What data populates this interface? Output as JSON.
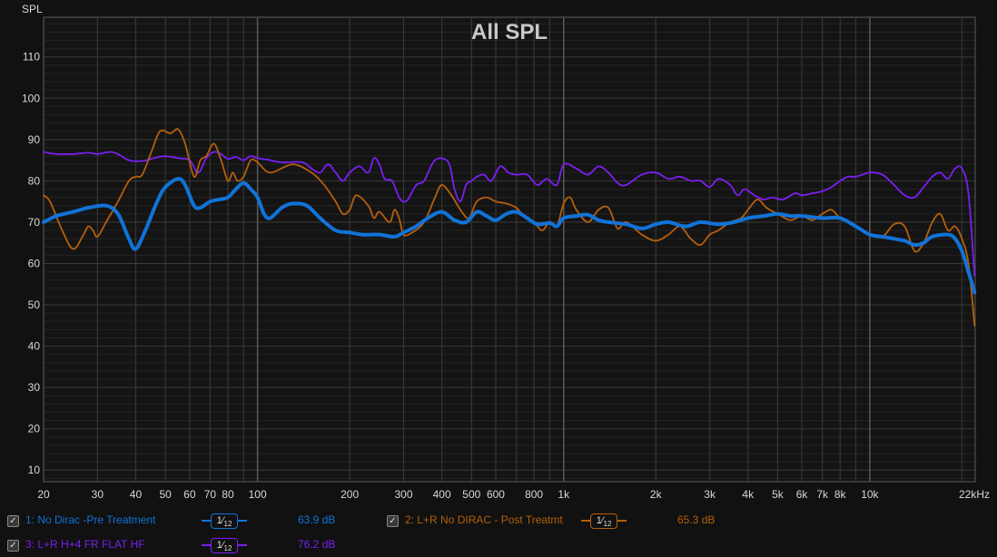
{
  "chart_data": {
    "type": "line",
    "title": "All SPL",
    "ylabel": "SPL",
    "xlabel": "",
    "xscale": "log",
    "xlim": [
      20,
      22100
    ],
    "ylim": [
      7.2,
      119.6
    ],
    "grid": true,
    "yticks": [
      10,
      20,
      30,
      40,
      50,
      60,
      70,
      80,
      90,
      100,
      110
    ],
    "xticks": [
      {
        "v": 20,
        "label": "20"
      },
      {
        "v": 30,
        "label": "30"
      },
      {
        "v": 40,
        "label": "40"
      },
      {
        "v": 50,
        "label": "50"
      },
      {
        "v": 60,
        "label": "60"
      },
      {
        "v": 70,
        "label": "70"
      },
      {
        "v": 80,
        "label": "80"
      },
      {
        "v": 100,
        "label": "100"
      },
      {
        "v": 200,
        "label": "200"
      },
      {
        "v": 300,
        "label": "300"
      },
      {
        "v": 400,
        "label": "400"
      },
      {
        "v": 500,
        "label": "500"
      },
      {
        "v": 600,
        "label": "600"
      },
      {
        "v": 800,
        "label": "800"
      },
      {
        "v": 1000,
        "label": "1k"
      },
      {
        "v": 2000,
        "label": "2k"
      },
      {
        "v": 3000,
        "label": "3k"
      },
      {
        "v": 4000,
        "label": "4k"
      },
      {
        "v": 5000,
        "label": "5k"
      },
      {
        "v": 6000,
        "label": "6k"
      },
      {
        "v": 7000,
        "label": "7k"
      },
      {
        "v": 8000,
        "label": "8k"
      },
      {
        "v": 10000,
        "label": "10k"
      },
      {
        "v": 22000,
        "label": "22kHz"
      }
    ],
    "legend_position": "bottom",
    "series": [
      {
        "name": "1: No Dirac -Pre Treatment",
        "color": "#1173d8",
        "width": 4,
        "smoothing": "1/12",
        "level": "63.9 dB",
        "points": [
          [
            20,
            70
          ],
          [
            22,
            71.5
          ],
          [
            25,
            72.5
          ],
          [
            28,
            73.5
          ],
          [
            32,
            74
          ],
          [
            35,
            72
          ],
          [
            38,
            66
          ],
          [
            40,
            63.5
          ],
          [
            43,
            68
          ],
          [
            47,
            75
          ],
          [
            50,
            78.5
          ],
          [
            55,
            80.5
          ],
          [
            58,
            79
          ],
          [
            62,
            74
          ],
          [
            65,
            73.5
          ],
          [
            70,
            75
          ],
          [
            75,
            75.5
          ],
          [
            80,
            76
          ],
          [
            85,
            78
          ],
          [
            90,
            79.5
          ],
          [
            95,
            78
          ],
          [
            100,
            76
          ],
          [
            105,
            72
          ],
          [
            110,
            71
          ],
          [
            120,
            73.5
          ],
          [
            130,
            74.5
          ],
          [
            145,
            74
          ],
          [
            160,
            71
          ],
          [
            180,
            68
          ],
          [
            200,
            67.5
          ],
          [
            220,
            67
          ],
          [
            250,
            67
          ],
          [
            280,
            66.5
          ],
          [
            300,
            67.5
          ],
          [
            330,
            69
          ],
          [
            360,
            71
          ],
          [
            400,
            72.5
          ],
          [
            440,
            70.5
          ],
          [
            480,
            70
          ],
          [
            520,
            72.5
          ],
          [
            560,
            71.5
          ],
          [
            600,
            70.5
          ],
          [
            650,
            72
          ],
          [
            700,
            72.5
          ],
          [
            760,
            71
          ],
          [
            820,
            69.5
          ],
          [
            900,
            69.8
          ],
          [
            950,
            69
          ],
          [
            1000,
            71
          ],
          [
            1100,
            71.5
          ],
          [
            1200,
            71.8
          ],
          [
            1300,
            70.5
          ],
          [
            1400,
            70
          ],
          [
            1600,
            69.5
          ],
          [
            1800,
            68.5
          ],
          [
            2000,
            69.5
          ],
          [
            2200,
            70
          ],
          [
            2500,
            69
          ],
          [
            2800,
            70
          ],
          [
            3200,
            69.5
          ],
          [
            3600,
            70
          ],
          [
            4000,
            71
          ],
          [
            4500,
            71.5
          ],
          [
            5000,
            72
          ],
          [
            5500,
            71.5
          ],
          [
            6000,
            71.5
          ],
          [
            7000,
            71
          ],
          [
            8000,
            71
          ],
          [
            9000,
            69
          ],
          [
            10000,
            67
          ],
          [
            11000,
            66.5
          ],
          [
            12000,
            66
          ],
          [
            13000,
            65.5
          ],
          [
            14000,
            64.5
          ],
          [
            15000,
            65
          ],
          [
            16000,
            66.5
          ],
          [
            18000,
            67
          ],
          [
            19000,
            66
          ],
          [
            20000,
            63
          ],
          [
            21000,
            58
          ],
          [
            22000,
            53
          ]
        ]
      },
      {
        "name": "2: L+R No DIRAC - Post Treatmt",
        "color": "#b55f0c",
        "width": 1.8,
        "smoothing": "1/12",
        "level": "65.3 dB",
        "points": [
          [
            20,
            76.5
          ],
          [
            21,
            75
          ],
          [
            23,
            68
          ],
          [
            25,
            63.5
          ],
          [
            27,
            67
          ],
          [
            28,
            69
          ],
          [
            29,
            68
          ],
          [
            30,
            66.5
          ],
          [
            32,
            70
          ],
          [
            35,
            75
          ],
          [
            38,
            80
          ],
          [
            40,
            81
          ],
          [
            42,
            81.5
          ],
          [
            45,
            87
          ],
          [
            48,
            92
          ],
          [
            52,
            91.5
          ],
          [
            55,
            92.5
          ],
          [
            58,
            89
          ],
          [
            62,
            81
          ],
          [
            65,
            85
          ],
          [
            68,
            86
          ],
          [
            72,
            89
          ],
          [
            76,
            85
          ],
          [
            80,
            80
          ],
          [
            83,
            82
          ],
          [
            86,
            80
          ],
          [
            90,
            81
          ],
          [
            95,
            85
          ],
          [
            100,
            84.5
          ],
          [
            110,
            82
          ],
          [
            130,
            84
          ],
          [
            150,
            82
          ],
          [
            165,
            79
          ],
          [
            180,
            75
          ],
          [
            190,
            72
          ],
          [
            200,
            73
          ],
          [
            210,
            76.5
          ],
          [
            230,
            74
          ],
          [
            240,
            71
          ],
          [
            250,
            72.5
          ],
          [
            270,
            70
          ],
          [
            280,
            73
          ],
          [
            290,
            71
          ],
          [
            300,
            67
          ],
          [
            320,
            67.5
          ],
          [
            350,
            70
          ],
          [
            380,
            76
          ],
          [
            400,
            79
          ],
          [
            430,
            76.5
          ],
          [
            460,
            73
          ],
          [
            490,
            71
          ],
          [
            520,
            75
          ],
          [
            560,
            76
          ],
          [
            600,
            75
          ],
          [
            650,
            74.5
          ],
          [
            700,
            73.5
          ],
          [
            750,
            71
          ],
          [
            800,
            70
          ],
          [
            850,
            68
          ],
          [
            900,
            70
          ],
          [
            950,
            69
          ],
          [
            1000,
            74.5
          ],
          [
            1050,
            76
          ],
          [
            1100,
            73
          ],
          [
            1200,
            70
          ],
          [
            1300,
            73
          ],
          [
            1400,
            73.5
          ],
          [
            1500,
            68.5
          ],
          [
            1600,
            70
          ],
          [
            1800,
            67
          ],
          [
            2000,
            65.5
          ],
          [
            2200,
            67
          ],
          [
            2400,
            69
          ],
          [
            2600,
            66
          ],
          [
            2800,
            64.5
          ],
          [
            3000,
            67
          ],
          [
            3200,
            68
          ],
          [
            3500,
            70
          ],
          [
            3800,
            71
          ],
          [
            4000,
            73
          ],
          [
            4300,
            75.5
          ],
          [
            4600,
            73.5
          ],
          [
            5000,
            72
          ],
          [
            5500,
            70.5
          ],
          [
            6000,
            71.5
          ],
          [
            6500,
            70.5
          ],
          [
            7000,
            72
          ],
          [
            7500,
            73
          ],
          [
            8000,
            71
          ],
          [
            9000,
            69
          ],
          [
            10000,
            67
          ],
          [
            11000,
            66.5
          ],
          [
            12000,
            69.5
          ],
          [
            13000,
            69
          ],
          [
            14000,
            63
          ],
          [
            15000,
            65
          ],
          [
            16000,
            70
          ],
          [
            17000,
            72
          ],
          [
            18000,
            68
          ],
          [
            19000,
            69
          ],
          [
            20000,
            66
          ],
          [
            21000,
            60
          ],
          [
            22000,
            45
          ]
        ]
      },
      {
        "name": "3: L+R H+4 FR FLAT HF",
        "color": "#7a1ff0",
        "width": 1.8,
        "smoothing": "1/12",
        "level": "76.2 dB",
        "points": [
          [
            20,
            87
          ],
          [
            22,
            86.5
          ],
          [
            25,
            86.5
          ],
          [
            28,
            86.8
          ],
          [
            30,
            86.5
          ],
          [
            33,
            87
          ],
          [
            35,
            86.5
          ],
          [
            38,
            85
          ],
          [
            42,
            84.8
          ],
          [
            46,
            85.5
          ],
          [
            50,
            86
          ],
          [
            55,
            85.5
          ],
          [
            60,
            85
          ],
          [
            64,
            82
          ],
          [
            68,
            85.5
          ],
          [
            72,
            87
          ],
          [
            76,
            86.5
          ],
          [
            80,
            85.3
          ],
          [
            85,
            85.8
          ],
          [
            90,
            85
          ],
          [
            95,
            86
          ],
          [
            100,
            85.5
          ],
          [
            110,
            85
          ],
          [
            120,
            84.5
          ],
          [
            140,
            84.5
          ],
          [
            150,
            83
          ],
          [
            160,
            82
          ],
          [
            170,
            84
          ],
          [
            180,
            82
          ],
          [
            190,
            80
          ],
          [
            200,
            82
          ],
          [
            215,
            83.5
          ],
          [
            230,
            82
          ],
          [
            240,
            85.5
          ],
          [
            250,
            84
          ],
          [
            260,
            80.5
          ],
          [
            275,
            80
          ],
          [
            290,
            76
          ],
          [
            300,
            75
          ],
          [
            310,
            75.5
          ],
          [
            330,
            79
          ],
          [
            350,
            80
          ],
          [
            380,
            85
          ],
          [
            420,
            84.5
          ],
          [
            440,
            78
          ],
          [
            460,
            75
          ],
          [
            480,
            79
          ],
          [
            500,
            80
          ],
          [
            520,
            81
          ],
          [
            550,
            81.5
          ],
          [
            580,
            80
          ],
          [
            620,
            83.5
          ],
          [
            660,
            82
          ],
          [
            700,
            81.5
          ],
          [
            760,
            81.5
          ],
          [
            820,
            79
          ],
          [
            880,
            80.5
          ],
          [
            950,
            79
          ],
          [
            1000,
            84
          ],
          [
            1100,
            83
          ],
          [
            1200,
            81.5
          ],
          [
            1300,
            83.5
          ],
          [
            1400,
            82
          ],
          [
            1500,
            79.5
          ],
          [
            1600,
            79
          ],
          [
            1800,
            81.5
          ],
          [
            2000,
            82
          ],
          [
            2200,
            80.5
          ],
          [
            2400,
            81
          ],
          [
            2600,
            80
          ],
          [
            2800,
            80
          ],
          [
            3000,
            78.5
          ],
          [
            3200,
            80.5
          ],
          [
            3500,
            79
          ],
          [
            3700,
            76.5
          ],
          [
            3900,
            78
          ],
          [
            4200,
            76.5
          ],
          [
            4500,
            75.5
          ],
          [
            4800,
            76
          ],
          [
            5200,
            75.5
          ],
          [
            5700,
            77
          ],
          [
            6000,
            76.5
          ],
          [
            6500,
            77
          ],
          [
            7000,
            77.5
          ],
          [
            7500,
            78.5
          ],
          [
            8000,
            80
          ],
          [
            8500,
            81
          ],
          [
            9000,
            81
          ],
          [
            10000,
            82
          ],
          [
            11000,
            81.5
          ],
          [
            12000,
            79
          ],
          [
            13000,
            76.5
          ],
          [
            14000,
            76
          ],
          [
            15000,
            78.5
          ],
          [
            16000,
            81
          ],
          [
            17000,
            82
          ],
          [
            18000,
            80.5
          ],
          [
            19000,
            83
          ],
          [
            20000,
            83
          ],
          [
            21000,
            77
          ],
          [
            22000,
            57
          ]
        ]
      }
    ]
  },
  "legend": {
    "check_glyph": "✓",
    "smoothing_num": "1",
    "smoothing_den": "12"
  }
}
